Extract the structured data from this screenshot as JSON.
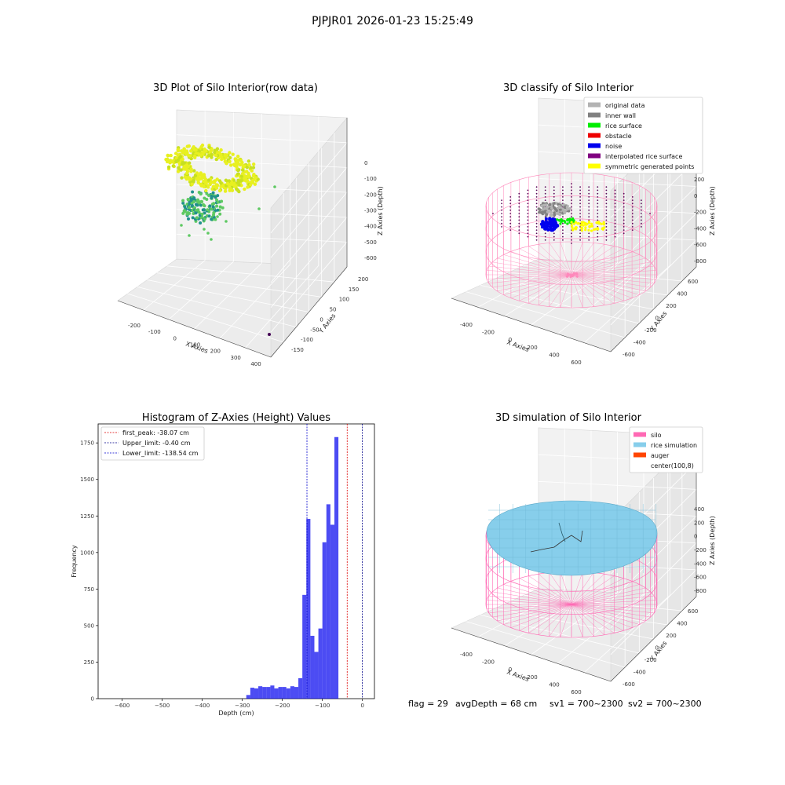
{
  "figure": {
    "suptitle": "PJPJR01 2026-01-23 15:25:49",
    "footer": {
      "flag": "flag = 29",
      "avg_depth": "avgDepth = 68 cm",
      "sv1": "sv1 = 700~2300",
      "sv2": "sv2 = 700~2300"
    }
  },
  "panel1": {
    "title": "3D Plot of Silo Interior(row data)",
    "xlabel": "X Axies",
    "ylabel": "Y Axies",
    "zlabel": "Z Axies (Depth)",
    "x_ticks": [
      "-200",
      "-100",
      "0",
      "100",
      "200",
      "300",
      "400"
    ],
    "y_ticks": [
      "-150",
      "-100",
      "-50",
      "0",
      "50",
      "100",
      "150",
      "200"
    ],
    "z_ticks": [
      "0",
      "-100",
      "-200",
      "-300",
      "-400",
      "-500",
      "-600"
    ],
    "colors": {
      "high": "#e8f020",
      "mid": "#5ec962",
      "low": "#21918c",
      "outlier": "#440154"
    }
  },
  "panel2": {
    "title": "3D classify of Silo Interior",
    "xlabel": "X Axies",
    "ylabel": "Y Axies",
    "zlabel": "Z Axies (Depth)",
    "x_ticks": [
      "-400",
      "-200",
      "0",
      "200",
      "400",
      "600"
    ],
    "y_ticks": [
      "-600",
      "-400",
      "-200",
      "0",
      "200",
      "400",
      "600"
    ],
    "z_ticks": [
      "200",
      "0",
      "-200",
      "-400",
      "-600",
      "-800"
    ],
    "legend": [
      {
        "label": "original data",
        "color": "#b3b3b3"
      },
      {
        "label": "inner wall",
        "color": "#808080"
      },
      {
        "label": "rice surface",
        "color": "#00ee00"
      },
      {
        "label": "obstacle",
        "color": "#ee0000"
      },
      {
        "label": "noise",
        "color": "#0000ee"
      },
      {
        "label": "interpolated rice surface",
        "color": "#800080"
      },
      {
        "label": "symmetric generated points",
        "color": "#ffff00"
      }
    ],
    "wire_color": "#ff88bb"
  },
  "panel3": {
    "chart_data": {
      "type": "bar",
      "title": "Histogram of Z-Axies (Height) Values",
      "xlabel": "Depth (cm)",
      "ylabel": "Frequency",
      "xlim": [
        -660,
        30
      ],
      "ylim": [
        0,
        1880
      ],
      "x_ticks": [
        -600,
        -500,
        -400,
        -300,
        -200,
        -100,
        0
      ],
      "y_ticks": [
        0,
        250,
        500,
        750,
        1000,
        1250,
        1500,
        1750
      ],
      "bin_width": 10,
      "bins": [
        {
          "x0": -290,
          "count": 25
        },
        {
          "x0": -280,
          "count": 75
        },
        {
          "x0": -270,
          "count": 70
        },
        {
          "x0": -260,
          "count": 85
        },
        {
          "x0": -250,
          "count": 80
        },
        {
          "x0": -240,
          "count": 80
        },
        {
          "x0": -230,
          "count": 90
        },
        {
          "x0": -220,
          "count": 70
        },
        {
          "x0": -210,
          "count": 80
        },
        {
          "x0": -200,
          "count": 80
        },
        {
          "x0": -190,
          "count": 70
        },
        {
          "x0": -180,
          "count": 85
        },
        {
          "x0": -170,
          "count": 80
        },
        {
          "x0": -160,
          "count": 140
        },
        {
          "x0": -150,
          "count": 710
        },
        {
          "x0": -140,
          "count": 1230
        },
        {
          "x0": -130,
          "count": 430
        },
        {
          "x0": -120,
          "count": 320
        },
        {
          "x0": -110,
          "count": 480
        },
        {
          "x0": -100,
          "count": 1070
        },
        {
          "x0": -90,
          "count": 1330
        },
        {
          "x0": -80,
          "count": 1190
        },
        {
          "x0": -70,
          "count": 1790
        }
      ],
      "bar_color": "#0000ee",
      "lines": [
        {
          "label": "first_peak: -38.07 cm",
          "value": -38.07,
          "color": "#dd0000"
        },
        {
          "label": "Upper_limit: -0.40 cm",
          "value": -0.4,
          "color": "#000088"
        },
        {
          "label": "Lower_limit: -138.54 cm",
          "value": -138.54,
          "color": "#0000cc"
        }
      ]
    }
  },
  "panel4": {
    "title": "3D simulation of Silo Interior",
    "xlabel": "X Axies",
    "ylabel": "Y Axies",
    "zlabel": "Z Axies (Depth)",
    "x_ticks": [
      "-400",
      "-200",
      "0",
      "200",
      "400",
      "600"
    ],
    "y_ticks": [
      "-600",
      "-400",
      "-200",
      "0",
      "200",
      "400",
      "600"
    ],
    "z_ticks": [
      "400",
      "200",
      "0",
      "-200",
      "-400",
      "-600",
      "-800"
    ],
    "legend": [
      {
        "label": "silo",
        "color": "#ff69b4"
      },
      {
        "label": "rice simulation",
        "color": "#87ceeb"
      },
      {
        "label": "auger",
        "color": "#ff4500"
      },
      {
        "label": "center(100,8)",
        "color": "none"
      }
    ],
    "surface_color": "#87ceeb",
    "wire_color": "#ff69b4"
  }
}
